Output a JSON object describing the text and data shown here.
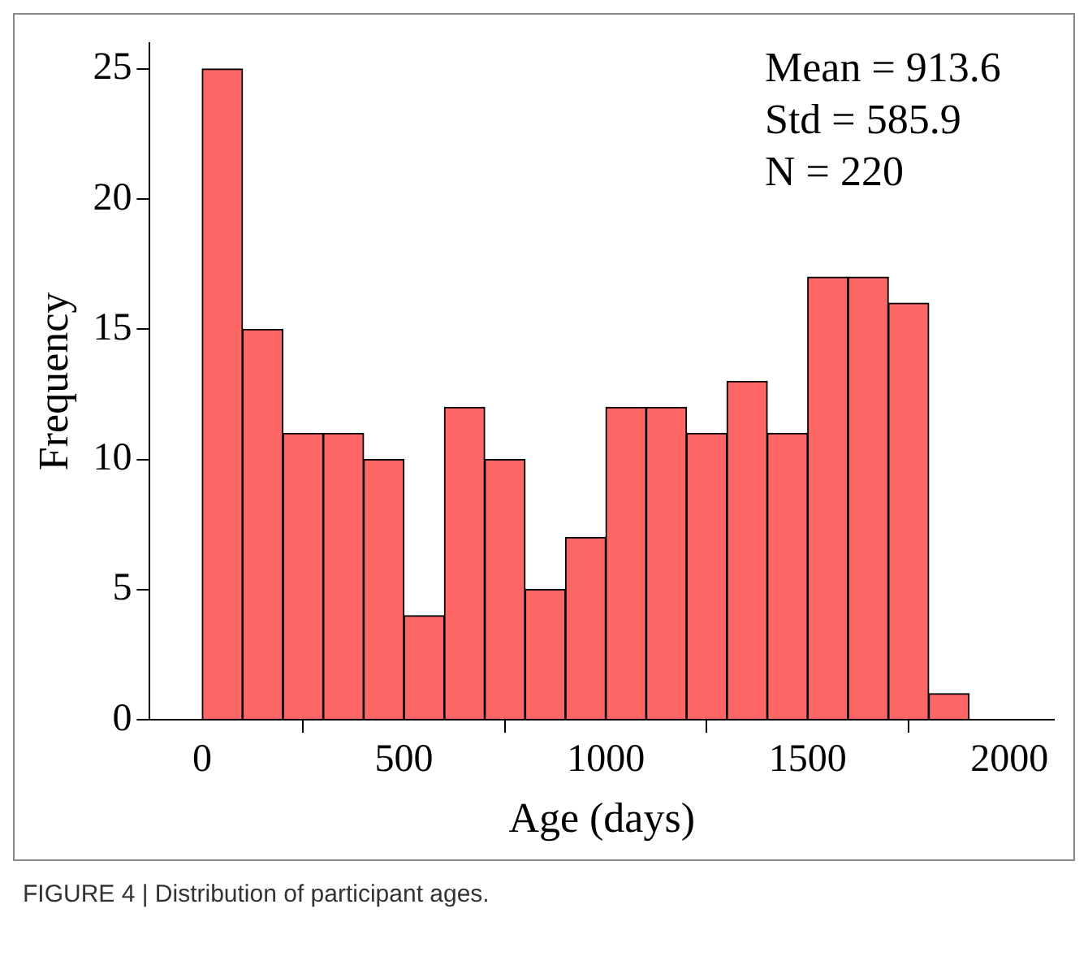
{
  "chart_data": {
    "type": "histogram",
    "xlabel": "Age (days)",
    "ylabel": "Frequency",
    "bins": [
      0,
      100,
      200,
      300,
      400,
      500,
      600,
      700,
      800,
      900,
      1000,
      1100,
      1200,
      1300,
      1400,
      1500,
      1600,
      1700,
      1800,
      1900
    ],
    "values": [
      25,
      15,
      11,
      11,
      10,
      4,
      12,
      10,
      5,
      7,
      12,
      12,
      11,
      13,
      11,
      17,
      17,
      16,
      1
    ],
    "color": "#ff6666",
    "xlim": [
      -130,
      2110
    ],
    "xticks": [
      0,
      500,
      1000,
      1500,
      2000
    ],
    "ylim": [
      0,
      26
    ],
    "yticks": [
      0,
      5,
      10,
      15,
      20,
      25
    ],
    "grid": false,
    "legend": false,
    "annotations": [
      "Mean = 913.6",
      "Std = 585.9",
      "N = 220",
      "FIGURE 4 | Distribution of participant ages."
    ]
  }
}
